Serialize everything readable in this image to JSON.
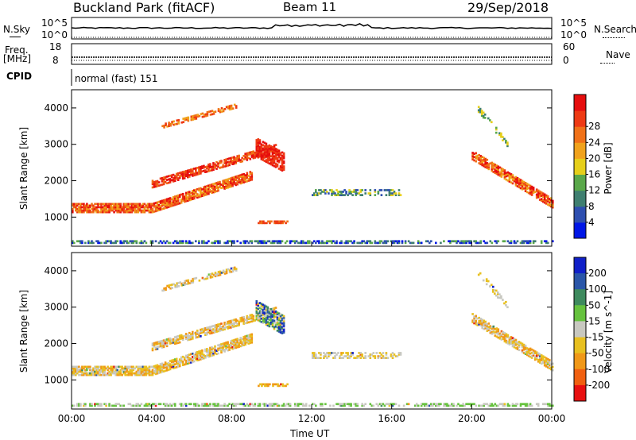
{
  "header": {
    "station": "Buckland Park (fitACF)",
    "beam": "Beam 11",
    "date": "29/Sep/2018"
  },
  "side_labels": {
    "nsky": "N.Sky",
    "nsearch": "N.Search",
    "freq_line1": "Freq.",
    "freq_line2": "[MHz]",
    "cpid": "CPID",
    "nave": "Nave"
  },
  "mode_text": "normal (fast) 151",
  "noise_axis": {
    "top": "10^5",
    "bottom": "10^0"
  },
  "freq_axis": {
    "left_top": "18",
    "left_bottom": "8",
    "right_top": "60",
    "right_bottom": "0"
  },
  "chart_data": [
    {
      "type": "heatmap",
      "title": "Power",
      "ylabel": "Slant Range [km]",
      "xlabel": "",
      "colorbar_label": "Power [dB]",
      "colorbar_ticks": [
        "4",
        "8",
        "12",
        "16",
        "20",
        "24",
        "28"
      ],
      "colorbar_colors": [
        "#0016e6",
        "#2e4fb0",
        "#3f7f70",
        "#5aa84a",
        "#e6cf1a",
        "#f0a21c",
        "#f07118",
        "#ee3a14",
        "#e60e0e"
      ],
      "x_ticks": [
        "00:00",
        "04:00",
        "08:00",
        "12:00",
        "16:00",
        "20:00",
        "00:00"
      ],
      "y_ticks": [
        "1000",
        "2000",
        "3000",
        "4000"
      ],
      "xlim": [
        0,
        24
      ],
      "ylim": [
        200,
        4500
      ]
    },
    {
      "type": "heatmap",
      "title": "Velocity",
      "ylabel": "Slant Range [km]",
      "xlabel": "Time UT",
      "colorbar_label": "Velocity [m s^-1]",
      "colorbar_ticks": [
        "200",
        "100",
        "50",
        "15",
        "-15",
        "-50",
        "-100",
        "-200"
      ],
      "colorbar_colors": [
        "#1020c8",
        "#2a56a8",
        "#3e8a5e",
        "#66c23e",
        "#c8c8c0",
        "#e8c020",
        "#f09818",
        "#f06010",
        "#e81010"
      ],
      "x_ticks": [
        "00:00",
        "04:00",
        "08:00",
        "12:00",
        "16:00",
        "20:00",
        "00:00"
      ],
      "y_ticks": [
        "1000",
        "2000",
        "3000",
        "4000"
      ],
      "xlim": [
        0,
        24
      ],
      "ylim": [
        200,
        4500
      ]
    }
  ]
}
